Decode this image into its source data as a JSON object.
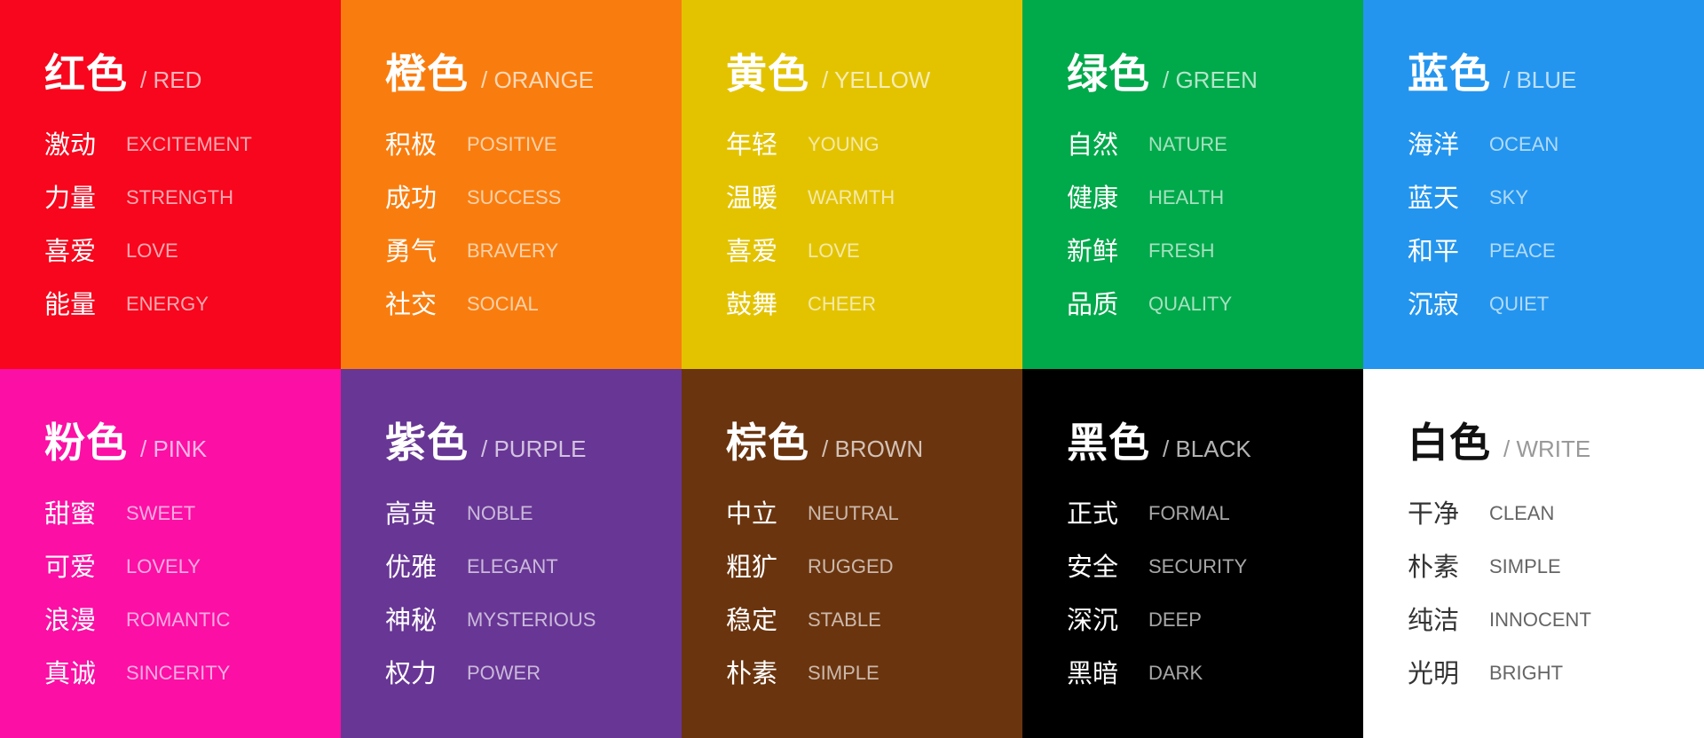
{
  "cards": [
    {
      "zh": "红色",
      "en": "/ RED",
      "bg": "#F7061D",
      "words": [
        [
          "激动",
          "EXCITEMENT"
        ],
        [
          "力量",
          "STRENGTH"
        ],
        [
          "喜爱",
          "LOVE"
        ],
        [
          "能量",
          "ENERGY"
        ]
      ]
    },
    {
      "zh": "橙色",
      "en": "/ ORANGE",
      "bg": "#F97D0E",
      "words": [
        [
          "积极",
          "POSITIVE"
        ],
        [
          "成功",
          "SUCCESS"
        ],
        [
          "勇气",
          "BRAVERY"
        ],
        [
          "社交",
          "SOCIAL"
        ]
      ]
    },
    {
      "zh": "黄色",
      "en": "/ YELLOW",
      "bg": "#E3C300",
      "words": [
        [
          "年轻",
          "YOUNG"
        ],
        [
          "温暖",
          "WARMTH"
        ],
        [
          "喜爱",
          "LOVE"
        ],
        [
          "鼓舞",
          "CHEER"
        ]
      ]
    },
    {
      "zh": "绿色",
      "en": "/ GREEN",
      "bg": "#00A94A",
      "words": [
        [
          "自然",
          "NATURE"
        ],
        [
          "健康",
          "HEALTH"
        ],
        [
          "新鲜",
          "FRESH"
        ],
        [
          "品质",
          "QUALITY"
        ]
      ]
    },
    {
      "zh": "蓝色",
      "en": "/ BLUE",
      "bg": "#2395EE",
      "words": [
        [
          "海洋",
          "OCEAN"
        ],
        [
          "蓝天",
          "SKY"
        ],
        [
          "和平",
          "PEACE"
        ],
        [
          "沉寂",
          "QUIET"
        ]
      ]
    },
    {
      "zh": "粉色",
      "en": "/ PINK",
      "bg": "#FB0FA5",
      "words": [
        [
          "甜蜜",
          "SWEET"
        ],
        [
          "可爱",
          "LOVELY"
        ],
        [
          "浪漫",
          "ROMANTIC"
        ],
        [
          "真诚",
          "SINCERITY"
        ]
      ]
    },
    {
      "zh": "紫色",
      "en": "/ PURPLE",
      "bg": "#683695",
      "words": [
        [
          "高贵",
          "NOBLE"
        ],
        [
          "优雅",
          "ELEGANT"
        ],
        [
          "神秘",
          "MYSTERIOUS"
        ],
        [
          "权力",
          "POWER"
        ]
      ]
    },
    {
      "zh": "棕色",
      "en": "/ BROWN",
      "bg": "#6A340E",
      "words": [
        [
          "中立",
          "NEUTRAL"
        ],
        [
          "粗犷",
          "RUGGED"
        ],
        [
          "稳定",
          "STABLE"
        ],
        [
          "朴素",
          "SIMPLE"
        ]
      ]
    },
    {
      "zh": "黑色",
      "en": "/ BLACK",
      "bg": "#000000",
      "words": [
        [
          "正式",
          "FORMAL"
        ],
        [
          "安全",
          "SECURITY"
        ],
        [
          "深沉",
          "DEEP"
        ],
        [
          "黑暗",
          "DARK"
        ]
      ]
    },
    {
      "zh": "白色",
      "en": "/ WRITE",
      "bg": "#FFFFFF",
      "light": true,
      "words": [
        [
          "干净",
          "CLEAN"
        ],
        [
          "朴素",
          "SIMPLE"
        ],
        [
          "纯洁",
          "INNOCENT"
        ],
        [
          "光明",
          "BRIGHT"
        ]
      ]
    }
  ]
}
